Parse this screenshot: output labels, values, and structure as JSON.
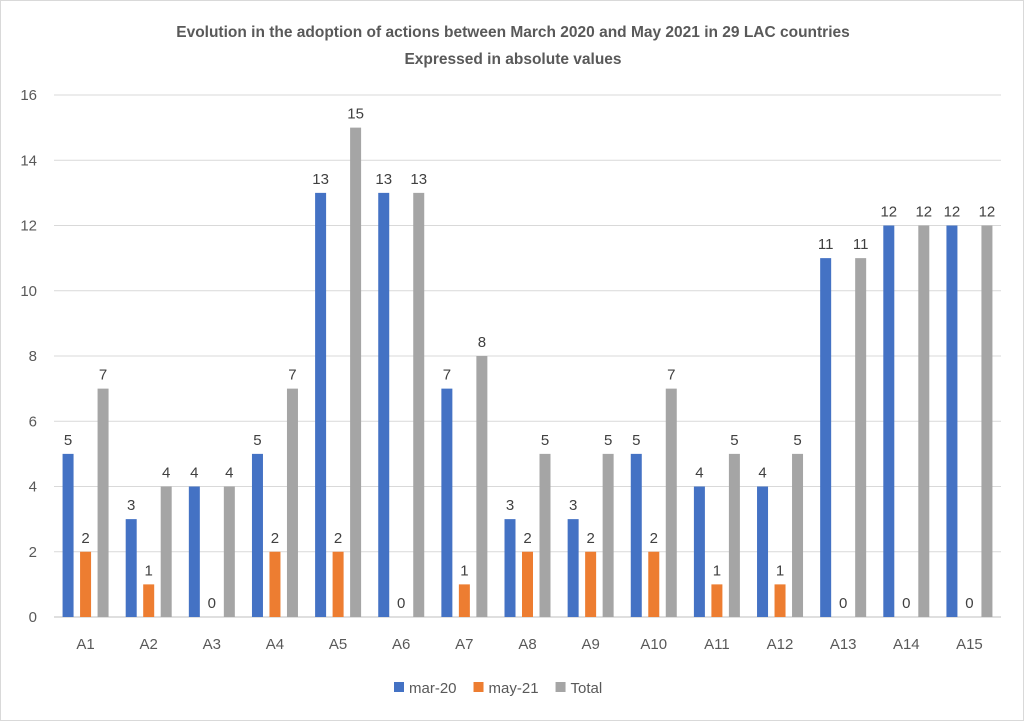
{
  "chart_data": {
    "type": "bar",
    "title": "Evolution in the adoption of actions between March 2020 and May 2021 in 29 LAC countries",
    "subtitle": "Expressed in absolute values",
    "xlabel": "",
    "ylabel": "",
    "ylim": [
      0,
      16
    ],
    "yticks": [
      0,
      2,
      4,
      6,
      8,
      10,
      12,
      14,
      16
    ],
    "grid": true,
    "legend_position": "bottom",
    "categories": [
      "A1",
      "A2",
      "A3",
      "A4",
      "A5",
      "A6",
      "A7",
      "A8",
      "A9",
      "A10",
      "A11",
      "A12",
      "A13",
      "A14",
      "A15"
    ],
    "series": [
      {
        "name": "mar-20",
        "color": "#4472C4",
        "values": [
          5,
          3,
          4,
          5,
          13,
          13,
          7,
          3,
          3,
          5,
          4,
          4,
          11,
          12,
          12
        ]
      },
      {
        "name": "may-21",
        "color": "#ED7D31",
        "values": [
          2,
          1,
          0,
          2,
          2,
          0,
          1,
          2,
          2,
          2,
          1,
          1,
          0,
          0,
          0
        ]
      },
      {
        "name": "Total",
        "color": "#A5A5A5",
        "values": [
          7,
          4,
          4,
          7,
          15,
          13,
          8,
          5,
          5,
          7,
          5,
          5,
          11,
          12,
          12
        ]
      }
    ]
  }
}
